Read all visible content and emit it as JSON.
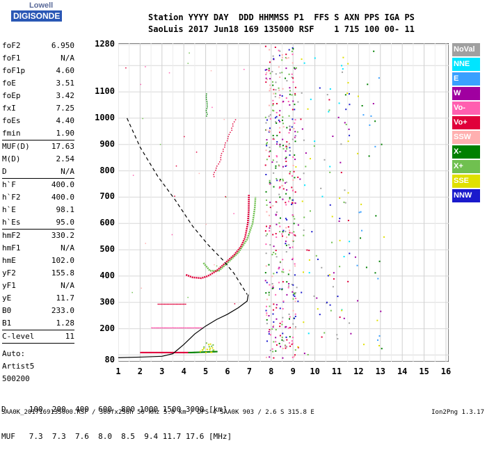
{
  "logo": {
    "line1": "Lowell",
    "line2": "DIGISONDE"
  },
  "header": {
    "row1": "Station YYYY DAY  DDD HHMMSS P1  FFS S AXN PPS IGA PS",
    "row2": "SaoLuis 2017 Jun18 169 135000 RSF    1 715 100 00- 11"
  },
  "params": {
    "group1": [
      [
        "foF2",
        "6.950"
      ],
      [
        "foF1",
        "N/A"
      ],
      [
        "foF1p",
        "4.60"
      ],
      [
        "foE",
        "3.51"
      ],
      [
        "foEp",
        "3.42"
      ],
      [
        "fxI",
        "7.25"
      ],
      [
        "foEs",
        "4.40"
      ],
      [
        "fmin",
        "1.90"
      ]
    ],
    "group2": [
      [
        "MUF(D)",
        "17.63"
      ],
      [
        "M(D)",
        "2.54"
      ],
      [
        "D",
        "N/A"
      ]
    ],
    "group3": [
      [
        "h`F",
        "400.0"
      ],
      [
        "h`F2",
        "400.0"
      ],
      [
        "h`E",
        "98.1"
      ],
      [
        "h`Es",
        "95.0"
      ]
    ],
    "group4": [
      [
        "hmF2",
        "330.2"
      ],
      [
        "hmF1",
        "N/A"
      ],
      [
        "hmE",
        "102.0"
      ],
      [
        "yF2",
        "155.8"
      ],
      [
        "yF1",
        "N/A"
      ],
      [
        "yE",
        "11.7"
      ],
      [
        "B0",
        "233.0"
      ],
      [
        "B1",
        "1.28"
      ]
    ],
    "group5": [
      [
        "C-level",
        "11"
      ]
    ],
    "group6": [
      "Auto:",
      "Artist5",
      "500200"
    ]
  },
  "axes": {
    "y_ticks": [
      "1280",
      "1100",
      "1000",
      "900",
      "800",
      "700",
      "600",
      "500",
      "400",
      "300",
      "200",
      "80"
    ],
    "x_ticks": [
      "1",
      "2",
      "3",
      "4",
      "5",
      "6",
      "7",
      "8",
      "9",
      "10",
      "11",
      "12",
      "13",
      "14",
      "15",
      "16"
    ]
  },
  "legend": [
    {
      "label": "NoVal",
      "color": "#a0a0a0"
    },
    {
      "label": "NNE",
      "color": "#00e5ff"
    },
    {
      "label": "E",
      "color": "#3aa0ff"
    },
    {
      "label": "W",
      "color": "#a000a0"
    },
    {
      "label": "Vo-",
      "color": "#ff5fb0"
    },
    {
      "label": "Vo+",
      "color": "#e0003a"
    },
    {
      "label": "SSW",
      "color": "#ffb0b0"
    },
    {
      "label": "X-",
      "color": "#008000"
    },
    {
      "label": "X+",
      "color": "#70c050"
    },
    {
      "label": "SSE",
      "color": "#e0e000"
    },
    {
      "label": "NNW",
      "color": "#1a1acc"
    }
  ],
  "muf_table": {
    "row_d": "D     100  200  400  600  800 1000 1500 3000 [km]",
    "row_muf": "MUF   7.3  7.3  7.6  8.0  8.5  9.4 11.7 17.6 [MHz]"
  },
  "footer": "SAA0K_2017169135000.RSF / 300fx256h 50 kHz 5.0 km / DPS-4 SAA0K 903 / 2.6 S 315.8 E",
  "version": "Ion2Png 1.3.17"
}
